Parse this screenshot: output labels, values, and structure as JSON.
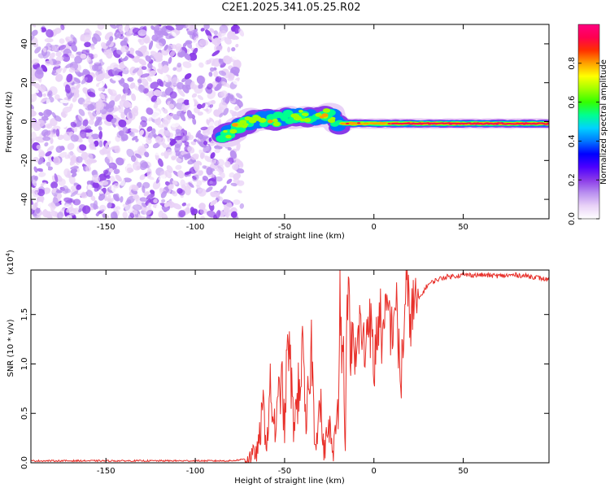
{
  "title": "C2E1.2025.341.05.25.R02",
  "chart_data": [
    {
      "type": "heatmap",
      "name": "spectrogram",
      "xlabel": "Height of straight line (km)",
      "ylabel": "Frequency (Hz)",
      "xlim": [
        -192,
        98
      ],
      "ylim": [
        -50,
        50
      ],
      "xticks": [
        "-150",
        "-100",
        "-50",
        "0",
        "50"
      ],
      "xtick_values": [
        -150,
        -100,
        -50,
        0,
        50
      ],
      "yticks": [
        "-40",
        "-20",
        "0",
        "20",
        "40"
      ],
      "ytick_values": [
        -40,
        -20,
        0,
        20,
        40
      ],
      "noise_region_x": [
        -192,
        -75
      ],
      "signal_track": {
        "x": [
          -85,
          -80,
          -75,
          -70,
          -65,
          -60,
          -55,
          -50,
          -45,
          -40,
          -35,
          -30,
          -25,
          -20,
          -15,
          -10,
          0,
          10,
          20,
          30,
          40,
          50,
          60,
          70,
          80,
          90,
          98
        ],
        "y": [
          -8,
          -5,
          -2,
          0,
          1,
          1,
          1,
          2,
          3,
          3,
          2,
          3,
          4,
          -1,
          -1,
          -1,
          -1,
          -1,
          -1,
          -1,
          -1,
          -1,
          -1,
          -1,
          -1,
          -1,
          -1
        ]
      },
      "colorbar": {
        "label": "Normalized spectral amplitude",
        "range": [
          0,
          1
        ],
        "ticks": [
          "0.0",
          "0.2",
          "0.4",
          "0.6",
          "0.8"
        ],
        "tick_values": [
          0,
          0.2,
          0.4,
          0.6,
          0.8
        ],
        "colors": [
          "#ffffff",
          "#e9d2f7",
          "#b98ff0",
          "#8a3ae8",
          "#4b00ff",
          "#0000ff",
          "#0077ff",
          "#00d2ff",
          "#00ff90",
          "#33ff00",
          "#a0ff00",
          "#ffff00",
          "#ffa000",
          "#ff3000",
          "#ff0050",
          "#ff0080"
        ]
      }
    },
    {
      "type": "line",
      "name": "snr",
      "xlabel": "Height of straight line (km)",
      "ylabel": "SNR (10 * v/v)",
      "scale_label": "(x10",
      "scale_exp": "4",
      "scale_close": ")",
      "xlim": [
        -192,
        98
      ],
      "ylim": [
        0,
        1.95
      ],
      "xticks": [
        "-150",
        "-100",
        "-50",
        "0",
        "50"
      ],
      "xtick_values": [
        -150,
        -100,
        -50,
        0,
        50
      ],
      "yticks": [
        "0.0",
        "0.5",
        "1.0",
        "1.5"
      ],
      "ytick_values": [
        0,
        0.5,
        1.0,
        1.5
      ],
      "line_color": "#e8302a",
      "x": [
        -192,
        -80,
        -75,
        -70,
        -65,
        -62,
        -60,
        -58,
        -55,
        -52,
        -50,
        -48,
        -45,
        -43,
        -40,
        -38,
        -35,
        -33,
        -30,
        -28,
        -25,
        -23,
        -20,
        -19,
        -18,
        -17,
        -16,
        -15,
        -13,
        -10,
        -8,
        -5,
        -3,
        0,
        3,
        5,
        8,
        10,
        12,
        15,
        18,
        20,
        25,
        30,
        35,
        40,
        50,
        60,
        70,
        80,
        90,
        95,
        98
      ],
      "y": [
        0.02,
        0.02,
        0.03,
        0.05,
        0.12,
        0.55,
        0.2,
        0.7,
        0.3,
        0.9,
        0.35,
        1.3,
        0.4,
        0.6,
        1.1,
        0.3,
        1.2,
        0.2,
        0.6,
        0.1,
        0.4,
        0.05,
        0.6,
        1.95,
        0.9,
        1.4,
        0.05,
        1.9,
        1.2,
        1.0,
        1.4,
        1.1,
        1.6,
        0.95,
        1.55,
        1.2,
        1.6,
        1.3,
        1.7,
        0.8,
        1.75,
        1.5,
        1.65,
        1.8,
        1.85,
        1.88,
        1.9,
        1.9,
        1.89,
        1.9,
        1.88,
        1.86,
        1.85
      ]
    }
  ]
}
